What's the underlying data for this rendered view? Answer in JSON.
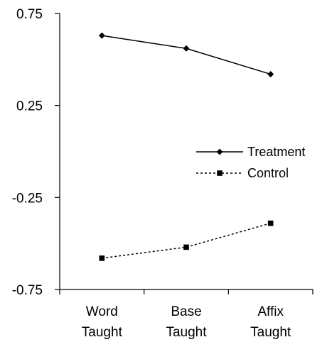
{
  "chart_data": {
    "type": "line",
    "categories": [
      [
        "Word",
        "Taught"
      ],
      [
        "Base",
        "Taught"
      ],
      [
        "Affix",
        "Taught"
      ]
    ],
    "ylim": [
      -0.75,
      0.75
    ],
    "yticks": [
      "0.75",
      "0.25",
      "-0.25",
      "-0.75"
    ],
    "ytick_values": [
      0.75,
      0.25,
      -0.25,
      -0.75
    ],
    "grid": false,
    "legend_position": "center-right",
    "series": [
      {
        "name": "Treatment",
        "values": [
          0.63,
          0.56,
          0.42
        ],
        "color": "#000000",
        "line_style": "solid",
        "marker": "diamond"
      },
      {
        "name": "Control",
        "values": [
          -0.58,
          -0.52,
          -0.39
        ],
        "color": "#000000",
        "line_style": "dotted",
        "marker": "square"
      }
    ]
  }
}
